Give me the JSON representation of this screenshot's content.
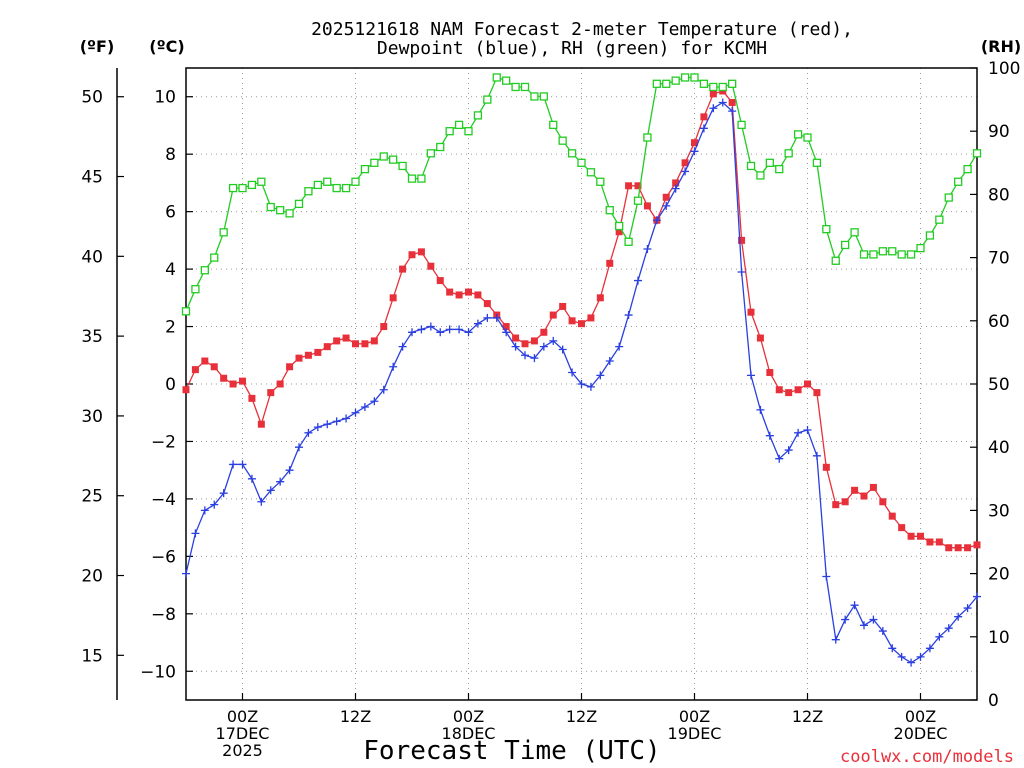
{
  "chart_data": {
    "type": "line",
    "title_lines": [
      "2025121618 NAM Forecast 2-meter Temperature (red),",
      "Dewpoint (blue), RH (green) for KCMH"
    ],
    "xlabel": "Forecast Time (UTC)",
    "credit": "coolwx.com/models",
    "unit_labels": {
      "f": "(ºF)",
      "c": "(ºC)",
      "rh": "(RH)"
    },
    "x_unit": "hours since 2025-12-16 18Z",
    "xlim": [
      0,
      84
    ],
    "x_ticks": [
      {
        "x": 6,
        "lines": [
          "00Z",
          "17DEC",
          "2025"
        ]
      },
      {
        "x": 18,
        "lines": [
          "12Z"
        ]
      },
      {
        "x": 30,
        "lines": [
          "00Z",
          "18DEC"
        ]
      },
      {
        "x": 42,
        "lines": [
          "12Z"
        ]
      },
      {
        "x": 54,
        "lines": [
          "00Z",
          "19DEC"
        ]
      },
      {
        "x": 66,
        "lines": [
          "12Z"
        ]
      },
      {
        "x": 78,
        "lines": [
          "00Z",
          "20DEC"
        ]
      }
    ],
    "axes": {
      "celsius": {
        "ylim": [
          -11,
          11
        ],
        "ticks": [
          -10,
          -8,
          -6,
          -4,
          -2,
          0,
          2,
          4,
          6,
          8,
          10
        ]
      },
      "fahrenheit": {
        "ylim": [
          12.2,
          51.8
        ],
        "ticks": [
          15,
          20,
          25,
          30,
          35,
          40,
          45,
          50
        ]
      },
      "rh": {
        "ylim": [
          0,
          100
        ],
        "ticks": [
          0,
          10,
          20,
          30,
          40,
          50,
          60,
          70,
          80,
          90,
          100
        ]
      }
    },
    "grid": true,
    "series": [
      {
        "name": "Temperature",
        "color": "#e8303a",
        "marker": "filled-square",
        "axis": "celsius",
        "points": [
          [
            0,
            -0.2
          ],
          [
            1,
            0.5
          ],
          [
            2,
            0.8
          ],
          [
            3,
            0.6
          ],
          [
            4,
            0.2
          ],
          [
            5,
            0
          ],
          [
            6,
            0.1
          ],
          [
            7,
            -0.5
          ],
          [
            8,
            -1.4
          ],
          [
            9,
            -0.3
          ],
          [
            10,
            0
          ],
          [
            11,
            0.6
          ],
          [
            12,
            0.9
          ],
          [
            13,
            1
          ],
          [
            14,
            1.1
          ],
          [
            15,
            1.3
          ],
          [
            16,
            1.5
          ],
          [
            17,
            1.6
          ],
          [
            18,
            1.4
          ],
          [
            19,
            1.4
          ],
          [
            20,
            1.5
          ],
          [
            21,
            2
          ],
          [
            22,
            3
          ],
          [
            23,
            4
          ],
          [
            24,
            4.5
          ],
          [
            25,
            4.6
          ],
          [
            26,
            4.1
          ],
          [
            27,
            3.6
          ],
          [
            28,
            3.2
          ],
          [
            29,
            3.1
          ],
          [
            30,
            3.2
          ],
          [
            31,
            3.1
          ],
          [
            32,
            2.8
          ],
          [
            33,
            2.4
          ],
          [
            34,
            2
          ],
          [
            35,
            1.6
          ],
          [
            36,
            1.4
          ],
          [
            37,
            1.5
          ],
          [
            38,
            1.8
          ],
          [
            39,
            2.4
          ],
          [
            40,
            2.7
          ],
          [
            41,
            2.2
          ],
          [
            42,
            2.1
          ],
          [
            43,
            2.3
          ],
          [
            44,
            3
          ],
          [
            45,
            4.2
          ],
          [
            46,
            5.3
          ],
          [
            47,
            6.9
          ],
          [
            48,
            6.9
          ],
          [
            49,
            6.2
          ],
          [
            50,
            5.7
          ],
          [
            51,
            6.5
          ],
          [
            52,
            7
          ],
          [
            53,
            7.7
          ],
          [
            54,
            8.4
          ],
          [
            55,
            9.3
          ],
          [
            56,
            10.1
          ],
          [
            57,
            10.2
          ],
          [
            58,
            9.8
          ],
          [
            59,
            5
          ],
          [
            60,
            2.5
          ],
          [
            61,
            1.6
          ],
          [
            62,
            0.4
          ],
          [
            63,
            -0.2
          ],
          [
            64,
            -0.3
          ],
          [
            65,
            -0.2
          ],
          [
            66,
            0
          ],
          [
            67,
            -0.3
          ],
          [
            68,
            -2.9
          ],
          [
            69,
            -4.2
          ],
          [
            70,
            -4.1
          ],
          [
            71,
            -3.7
          ],
          [
            72,
            -3.9
          ],
          [
            73,
            -3.6
          ],
          [
            74,
            -4.1
          ],
          [
            75,
            -4.6
          ],
          [
            76,
            -5
          ],
          [
            77,
            -5.3
          ],
          [
            78,
            -5.3
          ],
          [
            79,
            -5.5
          ],
          [
            80,
            -5.5
          ],
          [
            81,
            -5.7
          ],
          [
            82,
            -5.7
          ],
          [
            83,
            -5.7
          ],
          [
            84,
            -5.6
          ]
        ]
      },
      {
        "name": "Dewpoint",
        "color": "#2a3fe0",
        "marker": "plus",
        "axis": "celsius",
        "points": [
          [
            0,
            -6.6
          ],
          [
            1,
            -5.2
          ],
          [
            2,
            -4.4
          ],
          [
            3,
            -4.2
          ],
          [
            4,
            -3.8
          ],
          [
            5,
            -2.8
          ],
          [
            6,
            -2.8
          ],
          [
            7,
            -3.3
          ],
          [
            8,
            -4.1
          ],
          [
            9,
            -3.7
          ],
          [
            10,
            -3.4
          ],
          [
            11,
            -3
          ],
          [
            12,
            -2.2
          ],
          [
            13,
            -1.7
          ],
          [
            14,
            -1.5
          ],
          [
            15,
            -1.4
          ],
          [
            16,
            -1.3
          ],
          [
            17,
            -1.2
          ],
          [
            18,
            -1
          ],
          [
            19,
            -0.8
          ],
          [
            20,
            -0.6
          ],
          [
            21,
            -0.2
          ],
          [
            22,
            0.6
          ],
          [
            23,
            1.3
          ],
          [
            24,
            1.8
          ],
          [
            25,
            1.9
          ],
          [
            26,
            2
          ],
          [
            27,
            1.8
          ],
          [
            28,
            1.9
          ],
          [
            29,
            1.9
          ],
          [
            30,
            1.8
          ],
          [
            31,
            2.1
          ],
          [
            32,
            2.3
          ],
          [
            33,
            2.3
          ],
          [
            34,
            1.8
          ],
          [
            35,
            1.3
          ],
          [
            36,
            1
          ],
          [
            37,
            0.9
          ],
          [
            38,
            1.3
          ],
          [
            39,
            1.5
          ],
          [
            40,
            1.2
          ],
          [
            41,
            0.4
          ],
          [
            42,
            0
          ],
          [
            43,
            -0.1
          ],
          [
            44,
            0.3
          ],
          [
            45,
            0.8
          ],
          [
            46,
            1.3
          ],
          [
            47,
            2.4
          ],
          [
            48,
            3.6
          ],
          [
            49,
            4.7
          ],
          [
            50,
            5.7
          ],
          [
            51,
            6.2
          ],
          [
            52,
            6.8
          ],
          [
            53,
            7.4
          ],
          [
            54,
            8.1
          ],
          [
            55,
            8.9
          ],
          [
            56,
            9.6
          ],
          [
            57,
            9.8
          ],
          [
            58,
            9.5
          ],
          [
            59,
            3.9
          ],
          [
            60,
            0.3
          ],
          [
            61,
            -0.9
          ],
          [
            62,
            -1.8
          ],
          [
            63,
            -2.6
          ],
          [
            64,
            -2.3
          ],
          [
            65,
            -1.7
          ],
          [
            66,
            -1.6
          ],
          [
            67,
            -2.5
          ],
          [
            68,
            -6.7
          ],
          [
            69,
            -8.9
          ],
          [
            70,
            -8.2
          ],
          [
            71,
            -7.7
          ],
          [
            72,
            -8.4
          ],
          [
            73,
            -8.2
          ],
          [
            74,
            -8.6
          ],
          [
            75,
            -9.2
          ],
          [
            76,
            -9.5
          ],
          [
            77,
            -9.7
          ],
          [
            78,
            -9.5
          ],
          [
            79,
            -9.2
          ],
          [
            80,
            -8.8
          ],
          [
            81,
            -8.5
          ],
          [
            82,
            -8.1
          ],
          [
            83,
            -7.8
          ],
          [
            84,
            -7.4
          ]
        ]
      },
      {
        "name": "RH",
        "color": "#22cc22",
        "marker": "open-square",
        "axis": "rh",
        "points": [
          [
            0,
            61.5
          ],
          [
            1,
            65
          ],
          [
            2,
            68
          ],
          [
            3,
            70
          ],
          [
            4,
            74
          ],
          [
            5,
            81
          ],
          [
            6,
            81
          ],
          [
            7,
            81.5
          ],
          [
            8,
            82
          ],
          [
            9,
            78
          ],
          [
            10,
            77.5
          ],
          [
            11,
            77
          ],
          [
            12,
            78.5
          ],
          [
            13,
            80.5
          ],
          [
            14,
            81.5
          ],
          [
            15,
            82
          ],
          [
            16,
            81
          ],
          [
            17,
            81
          ],
          [
            18,
            82
          ],
          [
            19,
            84
          ],
          [
            20,
            85
          ],
          [
            21,
            86
          ],
          [
            22,
            85.5
          ],
          [
            23,
            84.5
          ],
          [
            24,
            82.5
          ],
          [
            25,
            82.5
          ],
          [
            26,
            86.5
          ],
          [
            27,
            87.5
          ],
          [
            28,
            90
          ],
          [
            29,
            91
          ],
          [
            30,
            90
          ],
          [
            31,
            92.5
          ],
          [
            32,
            95
          ],
          [
            33,
            98.5
          ],
          [
            34,
            98
          ],
          [
            35,
            97
          ],
          [
            36,
            97
          ],
          [
            37,
            95.5
          ],
          [
            38,
            95.5
          ],
          [
            39,
            91
          ],
          [
            40,
            88.5
          ],
          [
            41,
            86.5
          ],
          [
            42,
            85
          ],
          [
            43,
            83.5
          ],
          [
            44,
            82
          ],
          [
            45,
            77.5
          ],
          [
            46,
            75
          ],
          [
            47,
            72.5
          ],
          [
            48,
            79
          ],
          [
            49,
            89
          ],
          [
            50,
            97.5
          ],
          [
            51,
            97.5
          ],
          [
            52,
            98
          ],
          [
            53,
            98.5
          ],
          [
            54,
            98.5
          ],
          [
            55,
            97.5
          ],
          [
            56,
            97
          ],
          [
            57,
            97
          ],
          [
            58,
            97.5
          ],
          [
            59,
            91
          ],
          [
            60,
            84.5
          ],
          [
            61,
            83
          ],
          [
            62,
            85
          ],
          [
            63,
            84
          ],
          [
            64,
            86.5
          ],
          [
            65,
            89.5
          ],
          [
            66,
            89
          ],
          [
            67,
            85
          ],
          [
            68,
            74.5
          ],
          [
            69,
            69.5
          ],
          [
            70,
            72
          ],
          [
            71,
            74
          ],
          [
            72,
            70.5
          ],
          [
            73,
            70.5
          ],
          [
            74,
            71
          ],
          [
            75,
            71
          ],
          [
            76,
            70.5
          ],
          [
            77,
            70.5
          ],
          [
            78,
            71.5
          ],
          [
            79,
            73.5
          ],
          [
            80,
            76
          ],
          [
            81,
            79.5
          ],
          [
            82,
            82
          ],
          [
            83,
            84
          ],
          [
            84,
            86.5
          ]
        ]
      }
    ]
  }
}
